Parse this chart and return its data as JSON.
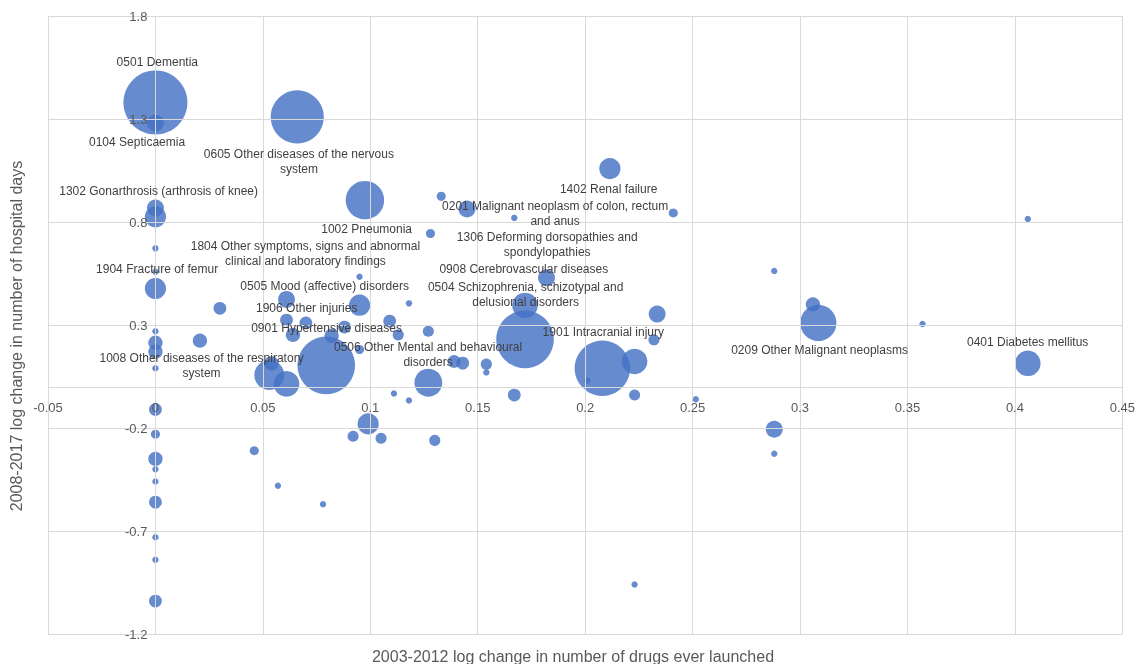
{
  "chart_data": {
    "type": "bubble",
    "xlabel": "2003-2012 log change in number of drugs ever launched",
    "ylabel": "2008-2017 log change in number of hospital days",
    "xlim": [
      -0.05,
      0.45
    ],
    "xticks": [
      -0.05,
      0,
      0.05,
      0.1,
      0.15,
      0.2,
      0.25,
      0.3,
      0.35,
      0.4,
      0.45
    ],
    "ylim": [
      -1.2,
      1.8
    ],
    "yticks": [
      -1.2,
      -0.7,
      -0.2,
      0.3,
      0.8,
      1.3,
      1.8
    ],
    "grid": true,
    "series": [
      {
        "color": "#4472c4",
        "x": [
          0,
          0,
          0.066,
          0.0975,
          0,
          0,
          0,
          0,
          0,
          0.03,
          0.061,
          0.095,
          0.095,
          0.118,
          0.128,
          0.133,
          0.145,
          0.167,
          0.2115,
          0.241,
          0.288,
          0.182,
          0.172,
          0.172,
          0.2335,
          0.406,
          0.306,
          0.3085,
          0.357,
          0.406,
          0,
          0,
          0,
          0,
          0.0207,
          0.061,
          0.07,
          0.064,
          0.082,
          0.088,
          0.095,
          0.109,
          0.113,
          0.127,
          0.054,
          0.053,
          0.061,
          0.0795,
          0.127,
          0.111,
          0.118,
          0,
          0,
          0,
          0,
          0,
          0,
          0,
          0,
          0,
          0.099,
          0.092,
          0.105,
          0.13,
          0.046,
          0.057,
          0.078,
          0.139,
          0.143,
          0.154,
          0.154,
          0.167,
          0.201,
          0.208,
          0.223,
          0.232,
          0.223,
          0.2515,
          0.288,
          0.288,
          0.223
        ],
        "values": [
          1.38,
          1.28,
          1.31,
          0.906,
          0.868,
          0.825,
          0.672,
          0.558,
          0.477,
          0.381,
          0.424,
          0.396,
          0.534,
          0.405,
          0.744,
          0.925,
          0.863,
          0.82,
          1.059,
          0.844,
          0.562,
          0.529,
          0.395,
          0.23,
          0.353,
          0.815,
          0.4,
          0.31,
          0.305,
          0.114,
          0.27,
          0.214,
          0.171,
          0.09,
          0.224,
          0.324,
          0.31,
          0.252,
          0.248,
          0.29,
          0.181,
          0.319,
          0.252,
          0.27,
          0.114,
          0.057,
          0.014,
          0.104,
          0.02,
          -0.033,
          -0.067,
          -0.11,
          -0.23,
          -0.35,
          -0.4,
          -0.46,
          -0.56,
          -0.73,
          -0.84,
          -1.04,
          -0.18,
          -0.24,
          -0.25,
          -0.26,
          -0.31,
          -0.48,
          -0.57,
          0.123,
          0.115,
          0.11,
          0.07,
          -0.04,
          0.03,
          0.09,
          0.123,
          0.228,
          -0.04,
          -0.06,
          -0.206,
          -0.325,
          -0.96
        ],
        "sizes": [
          1,
          0.07,
          0.69,
          0.36,
          0.07,
          0.11,
          0.01,
          0.01,
          0.11,
          0.04,
          0.07,
          0.11,
          0.01,
          0.01,
          0.02,
          0.02,
          0.07,
          0.01,
          0.11,
          0.02,
          0.01,
          0.07,
          0.16,
          0.81,
          0.07,
          0.01,
          0.05,
          0.32,
          0.01,
          0.16,
          0.01,
          0.05,
          0.05,
          0.01,
          0.05,
          0.04,
          0.04,
          0.05,
          0.05,
          0.04,
          0.02,
          0.04,
          0.03,
          0.03,
          0.05,
          0.22,
          0.16,
          0.81,
          0.19,
          0.01,
          0.01,
          0.04,
          0.02,
          0.05,
          0.01,
          0.01,
          0.04,
          0.01,
          0.01,
          0.04,
          0.11,
          0.03,
          0.03,
          0.03,
          0.02,
          0.01,
          0.01,
          0.04,
          0.04,
          0.03,
          0.01,
          0.04,
          0.01,
          0.75,
          0.16,
          0.03,
          0.03,
          0.01,
          0.07,
          0.01,
          0.01
        ]
      }
    ],
    "annotations": [
      {
        "text": "0501 Dementia",
        "x": 0,
        "y": 1.38
      },
      {
        "text": "0104 Septicaemia",
        "x": 0,
        "y": 1.28
      },
      {
        "text": "0605 Other diseases of the nervous system",
        "x": 0.066,
        "y": 1.31
      },
      {
        "text": "1002 Pneumonia",
        "x": 0.0975,
        "y": 0.906
      },
      {
        "text": "1402 Renal failure",
        "x": 0.2115,
        "y": 1.059
      },
      {
        "text": "1302 Gonarthrosis (arthrosis of knee)",
        "x": 0,
        "y": 0.868
      },
      {
        "text": "1804 Other symptoms, signs and abnormal clinical and laboratory findings",
        "x": 0.061,
        "y": 0.424
      },
      {
        "text": "0201 Malignant neoplasm of colon, rectum and anus",
        "x": 0.128,
        "y": 0.744
      },
      {
        "text": "1904 Fracture of femur",
        "x": 0,
        "y": 0.477
      },
      {
        "text": "0505 Mood (affective) disorders",
        "x": 0.095,
        "y": 0.396
      },
      {
        "text": "1306 Deforming dorsopathies and spondylopathies",
        "x": 0.182,
        "y": 0.529
      },
      {
        "text": "0908 Cerebrovascular diseases",
        "x": 0.172,
        "y": 0.395
      },
      {
        "text": "0209 Other Malignant neoplasms",
        "x": 0.3085,
        "y": 0.31
      },
      {
        "text": "0504 Schizophrenia, schizotypal and delusional disorders",
        "x": 0.172,
        "y": 0.23
      },
      {
        "text": "1906 Other injuries",
        "x": 0.07,
        "y": 0.31
      },
      {
        "text": "0506 Other Mental and behavioural disorders",
        "x": 0.127,
        "y": 0.27
      },
      {
        "text": "1008 Other diseases of the respiratory system",
        "x": 0.0207,
        "y": 0.224
      },
      {
        "text": "1901 Intracranial injury",
        "x": 0.208,
        "y": 0.09
      },
      {
        "text": "0401 Diabetes mellitus",
        "x": 0.406,
        "y": 0.114
      },
      {
        "text": "0901 Hypertensive diseases",
        "x": 0.0795,
        "y": 0.104
      }
    ]
  }
}
